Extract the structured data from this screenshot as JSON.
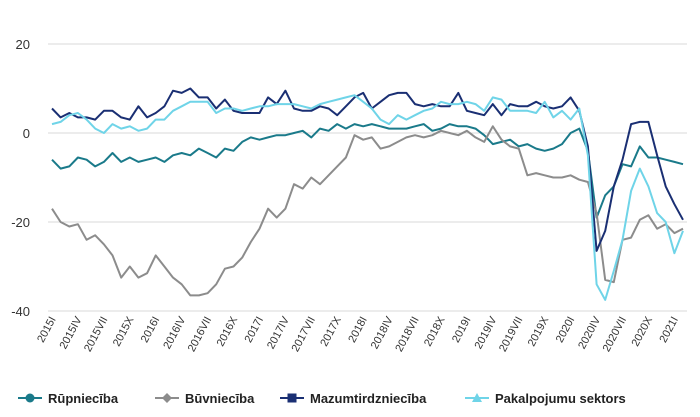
{
  "chart_data": {
    "type": "line",
    "title": "",
    "xlabel": "",
    "ylabel": "",
    "ylim": [
      -40,
      20
    ],
    "yticks": [
      20,
      0,
      -20,
      -40
    ],
    "grid": "horizontal",
    "legend_position": "bottom",
    "x": [
      "2015I",
      "2015II",
      "2015III",
      "2015IV",
      "2015V",
      "2015VI",
      "2015VII",
      "2015VIII",
      "2015IX",
      "2015X",
      "2015XI",
      "2015XII",
      "2016I",
      "2016II",
      "2016III",
      "2016IV",
      "2016V",
      "2016VI",
      "2016VII",
      "2016VIII",
      "2016IX",
      "2016X",
      "2016XI",
      "2016XII",
      "2017I",
      "2017II",
      "2017III",
      "2017IV",
      "2017V",
      "2017VI",
      "2017VII",
      "2017VIII",
      "2017IX",
      "2017X",
      "2017XI",
      "2017XII",
      "2018I",
      "2018II",
      "2018III",
      "2018IV",
      "2018V",
      "2018VI",
      "2018VII",
      "2018VIII",
      "2018IX",
      "2018X",
      "2018XI",
      "2018XII",
      "2019I",
      "2019II",
      "2019III",
      "2019IV",
      "2019V",
      "2019VI",
      "2019VII",
      "2019VIII",
      "2019IX",
      "2019X",
      "2019XI",
      "2019XII",
      "2020I",
      "2020II",
      "2020III",
      "2020IV",
      "2020V",
      "2020VI",
      "2020VII",
      "2020VIII",
      "2020IX",
      "2020X",
      "2020XI",
      "2020XII",
      "2021I",
      "2021II"
    ],
    "x_tick_labels": [
      "2015I",
      "2015IV",
      "2015VII",
      "2015X",
      "2016I",
      "2016IV",
      "2016VII",
      "2016X",
      "2017I",
      "2017IV",
      "2017VII",
      "2017X",
      "2018I",
      "2018IV",
      "2018VII",
      "2018X",
      "2019I",
      "2019IV",
      "2019VII",
      "2019X",
      "2020I",
      "2020IV",
      "2020VII",
      "2020X",
      "2021I"
    ],
    "series": [
      {
        "name": "Rūpniecība",
        "color": "#1a7a8a",
        "values": [
          -6,
          -8,
          -7.5,
          -5.5,
          -6,
          -7.5,
          -6.5,
          -4.5,
          -6.5,
          -5.5,
          -6.5,
          -6,
          -5.5,
          -6.5,
          -5,
          -4.5,
          -5,
          -3.5,
          -4.5,
          -5.5,
          -3.5,
          -4,
          -2,
          -1,
          -1.5,
          -1,
          -0.5,
          -0.5,
          0,
          0.5,
          -1,
          1,
          0.5,
          2,
          1,
          2,
          1.5,
          2,
          1.5,
          1,
          1,
          1,
          1.5,
          2,
          0.5,
          1,
          2,
          1.5,
          1.5,
          1,
          -0.5,
          -2.5,
          -2,
          -1.5,
          -3,
          -2.5,
          -3.5,
          -4,
          -3.5,
          -2.5,
          0,
          1,
          -4,
          -19,
          -14,
          -12,
          -7,
          -7.5,
          -3,
          -5.5,
          -5.5,
          -6,
          -6.5,
          -7
        ]
      },
      {
        "name": "Būvniecība",
        "color": "#8c8c8c",
        "values": [
          -17,
          -20,
          -21,
          -20.5,
          -24,
          -23,
          -25,
          -27.5,
          -32.5,
          -30,
          -32.5,
          -31.5,
          -27.5,
          -30,
          -32.5,
          -34,
          -36.5,
          -36.5,
          -36,
          -34,
          -30.5,
          -30,
          -28,
          -24.5,
          -21.5,
          -17,
          -19,
          -17,
          -11.5,
          -12.5,
          -10,
          -11.5,
          -9.5,
          -7.5,
          -5.5,
          -0.5,
          -1.5,
          -1,
          -3.5,
          -3,
          -2,
          -1,
          -0.5,
          -1,
          -0.5,
          0.5,
          0,
          -0.5,
          0.5,
          -1,
          -2,
          1.5,
          -1.5,
          -3,
          -3.5,
          -9.5,
          -9,
          -9.5,
          -10,
          -10,
          -9.5,
          -10.5,
          -11,
          -18,
          -33,
          -33.5,
          -24,
          -23.5,
          -19.5,
          -18.5,
          -21.5,
          -20.5,
          -22.5,
          -21.5
        ]
      },
      {
        "name": "Mazumtirdzniecība",
        "color": "#1a2f73",
        "values": [
          5.5,
          3.5,
          4.5,
          3.5,
          3.5,
          3,
          5,
          5,
          3.5,
          3,
          6,
          3.5,
          4.5,
          6,
          9.5,
          9,
          10,
          8,
          8,
          5.5,
          7.5,
          5,
          4.5,
          4.5,
          4.5,
          8,
          6.5,
          9.5,
          5.5,
          5,
          5,
          6,
          5.5,
          4,
          6,
          8,
          9,
          5.5,
          7,
          8.5,
          9,
          9,
          6.5,
          6,
          6.5,
          6,
          6,
          9,
          5,
          4.5,
          4,
          6.5,
          4,
          6.5,
          6,
          6,
          7,
          6,
          5.5,
          6,
          8,
          5,
          -3,
          -26.5,
          -22,
          -12,
          -6,
          2,
          2.5,
          2.5,
          -5,
          -12,
          -16,
          -19.5
        ]
      },
      {
        "name": "Pakalpojumu sektors",
        "color": "#6fd4e8",
        "values": [
          2,
          2.5,
          4,
          4.5,
          3,
          1,
          0,
          2,
          1,
          1.5,
          0.5,
          1,
          3,
          3,
          5,
          6,
          7,
          7,
          7,
          4.5,
          5.5,
          5.5,
          5,
          5.5,
          6,
          6,
          6.5,
          6.5,
          6.5,
          6,
          5.5,
          6.5,
          7,
          7.5,
          8,
          8.5,
          7,
          5.5,
          3,
          2,
          4,
          3,
          4,
          5,
          5.5,
          7,
          6.5,
          6.5,
          7,
          6.5,
          5,
          8,
          7.5,
          5,
          5,
          5,
          4.5,
          7,
          3.5,
          5,
          3,
          5.5,
          -5,
          -34,
          -37.5,
          -31,
          -24,
          -13,
          -8,
          -12,
          -18,
          -20,
          -27,
          -22
        ]
      }
    ]
  }
}
